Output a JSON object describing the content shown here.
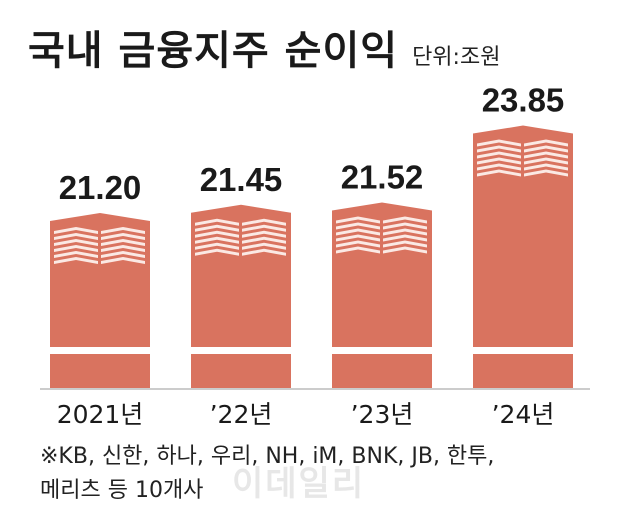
{
  "header": {
    "title": "국내 금융지주 순이익",
    "unit": "단위:조원"
  },
  "chart_data": {
    "type": "bar",
    "title": "국내 금융지주 순이익",
    "unit": "단위:조원",
    "categories": [
      "2021년",
      "’22년",
      "’23년",
      "’24년"
    ],
    "values": [
      21.2,
      21.45,
      21.52,
      23.85
    ],
    "value_labels": [
      "21.20",
      "21.45",
      "21.52",
      "23.85"
    ],
    "axis_break": true,
    "bar_color": "#d9735f",
    "bar_light": "#fbe9e4",
    "grid": false
  },
  "footnote": {
    "line1": "※KB, 신한, 하나, 우리, NH, iM, BNK, JB, 한투,",
    "line2": "메리츠 등 10개사"
  },
  "watermark": "이데일리"
}
